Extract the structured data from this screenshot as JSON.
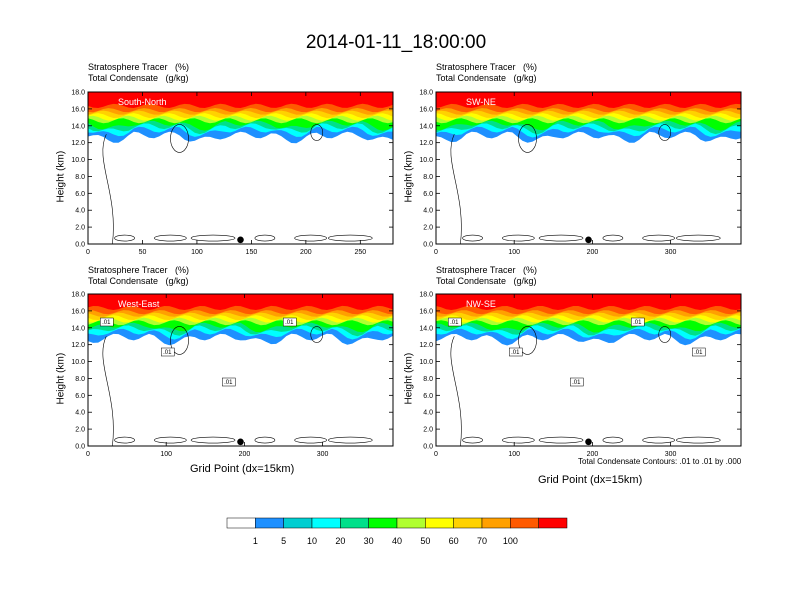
{
  "title": "2014-01-11_18:00:00",
  "colors": {
    "palette": [
      "#ffffff",
      "#1e90ff",
      "#00ced1",
      "#00ffff",
      "#00e08a",
      "#00ff00",
      "#b0ff30",
      "#ffff00",
      "#ffd200",
      "#ffa000",
      "#ff5a00",
      "#ff0000"
    ]
  },
  "chart_data": [
    {
      "type": "heatmap",
      "name": "South-North",
      "title": "Stratosphere Tracer   (%)",
      "subtitle": "Total Condensate   (g/kg)",
      "xlabel": "",
      "ylabel": "Height (km)",
      "xlim": [
        0,
        280
      ],
      "ylim": [
        0,
        18
      ],
      "xticks": [
        "0",
        "50",
        "100",
        "150",
        "200",
        "250"
      ],
      "xtick_values": [
        0,
        50,
        100,
        150,
        200,
        250
      ],
      "yticks": [
        "0.0",
        "2.0",
        "4.0",
        "6.0",
        "8.0",
        "10.0",
        "12.0",
        "14.0",
        "16.0",
        "18.0"
      ],
      "marker_x": 140,
      "contour_labels": []
    },
    {
      "type": "heatmap",
      "name": "SW-NE",
      "title": "Stratosphere Tracer   (%)",
      "subtitle": "Total Condensate   (g/kg)",
      "xlabel": "",
      "ylabel": "Height (km)",
      "xlim": [
        0,
        390
      ],
      "ylim": [
        0,
        18
      ],
      "xticks": [
        "0",
        "100",
        "200",
        "300"
      ],
      "xtick_values": [
        0,
        100,
        200,
        300
      ],
      "yticks": [
        "0.0",
        "2.0",
        "4.0",
        "6.0",
        "8.0",
        "10.0",
        "12.0",
        "14.0",
        "16.0",
        "18.0"
      ],
      "marker_x": 195,
      "contour_labels": []
    },
    {
      "type": "heatmap",
      "name": "West-East",
      "title": "Stratosphere Tracer   (%)",
      "subtitle": "Total Condensate   (g/kg)",
      "xlabel": "Grid Point (dx=15km)",
      "ylabel": "Height (km)",
      "xlim": [
        0,
        390
      ],
      "ylim": [
        0,
        18
      ],
      "xticks": [
        "0",
        "100",
        "200",
        "300"
      ],
      "xtick_values": [
        0,
        100,
        200,
        300
      ],
      "yticks": [
        "0.0",
        "2.0",
        "4.0",
        "6.0",
        "8.0",
        "10.0",
        "12.0",
        "14.0",
        "16.0",
        "18.0"
      ],
      "marker_x": 195,
      "contour_labels": [
        ".01",
        ".01",
        ".01",
        ".01"
      ]
    },
    {
      "type": "heatmap",
      "name": "NW-SE",
      "title": "Stratosphere Tracer   (%)",
      "subtitle": "Total Condensate   (g/kg)",
      "xlabel": "Grid Point (dx=15km)",
      "ylabel": "Height (km)",
      "xlim": [
        0,
        390
      ],
      "ylim": [
        0,
        18
      ],
      "xticks": [
        "0",
        "100",
        "200",
        "300"
      ],
      "xtick_values": [
        0,
        100,
        200,
        300
      ],
      "yticks": [
        "0.0",
        "2.0",
        "4.0",
        "6.0",
        "8.0",
        "10.0",
        "12.0",
        "14.0",
        "16.0",
        "18.0"
      ],
      "marker_x": 195,
      "contour_labels": [
        ".01",
        ".01",
        ".01",
        ".01",
        ".01"
      ],
      "note": "Total Condensate Contours: .01 to .01 by .000"
    }
  ],
  "colorbar": {
    "labels": [
      "1",
      "5",
      "10",
      "20",
      "30",
      "40",
      "50",
      "60",
      "70",
      "100"
    ]
  }
}
